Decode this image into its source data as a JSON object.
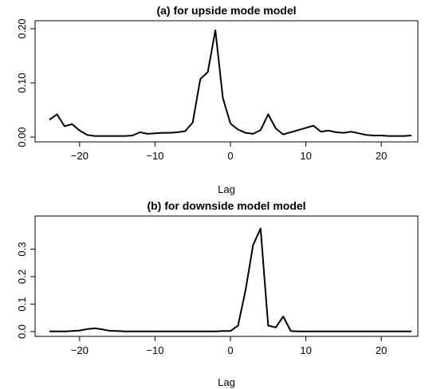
{
  "chart_data": [
    {
      "type": "line",
      "title": "(a) for upside mode model",
      "xlabel": "Lag",
      "ylabel": "",
      "xlim": [
        -24,
        24
      ],
      "ylim": [
        0,
        0.2
      ],
      "xticks": [
        -20,
        -10,
        0,
        10,
        20
      ],
      "xtick_labels": [
        "−20",
        "−10",
        "0",
        "10",
        "20"
      ],
      "yticks": [
        0,
        0.1,
        0.2
      ],
      "ytick_labels": [
        "0.00",
        "0.10",
        "0.20"
      ],
      "grid": false,
      "series": [
        {
          "x": [
            -24,
            -23,
            -22,
            -21,
            -20,
            -19,
            -18,
            -17,
            -16,
            -15,
            -14,
            -13,
            -12,
            -11,
            -10,
            -9,
            -8,
            -7,
            -6,
            -5,
            -4,
            -3,
            -2,
            -1,
            0,
            1,
            2,
            3,
            4,
            5,
            6,
            7,
            8,
            9,
            10,
            11,
            12,
            13,
            14,
            15,
            16,
            17,
            18,
            19,
            20,
            21,
            22,
            23,
            24
          ],
          "y": [
            0.032,
            0.042,
            0.02,
            0.024,
            0.012,
            0.004,
            0.002,
            0.002,
            0.002,
            0.002,
            0.002,
            0.003,
            0.009,
            0.006,
            0.007,
            0.008,
            0.008,
            0.009,
            0.011,
            0.027,
            0.107,
            0.12,
            0.197,
            0.072,
            0.025,
            0.014,
            0.008,
            0.006,
            0.013,
            0.042,
            0.016,
            0.005,
            0.009,
            0.013,
            0.017,
            0.021,
            0.01,
            0.012,
            0.009,
            0.008,
            0.01,
            0.007,
            0.004,
            0.003,
            0.003,
            0.002,
            0.002,
            0.002,
            0.003
          ]
        }
      ]
    },
    {
      "type": "line",
      "title": "(b) for downside model model",
      "xlabel": "Lag",
      "ylabel": "",
      "xlim": [
        -24,
        24
      ],
      "ylim": [
        0,
        0.38
      ],
      "xticks": [
        -20,
        -10,
        0,
        10,
        20
      ],
      "xtick_labels": [
        "−20",
        "−10",
        "0",
        "10",
        "20"
      ],
      "yticks": [
        0,
        0.1,
        0.2,
        0.3
      ],
      "ytick_labels": [
        "0.0",
        "0.1",
        "0.2",
        "0.3"
      ],
      "grid": false,
      "series": [
        {
          "x": [
            -24,
            -23,
            -22,
            -21,
            -20,
            -19,
            -18,
            -17,
            -16,
            -15,
            -14,
            -13,
            -12,
            -11,
            -10,
            -9,
            -8,
            -7,
            -6,
            -5,
            -4,
            -3,
            -2,
            -1,
            0,
            1,
            2,
            3,
            4,
            5,
            6,
            7,
            8,
            9,
            10,
            11,
            12,
            13,
            14,
            15,
            16,
            17,
            18,
            19,
            20,
            21,
            22,
            23,
            24
          ],
          "y": [
            0.001,
            0.001,
            0.001,
            0.002,
            0.004,
            0.009,
            0.012,
            0.008,
            0.003,
            0.002,
            0.001,
            0.001,
            0.001,
            0.001,
            0.001,
            0.001,
            0.001,
            0.001,
            0.001,
            0.001,
            0.001,
            0.001,
            0.001,
            0.002,
            0.002,
            0.022,
            0.15,
            0.315,
            0.375,
            0.022,
            0.015,
            0.055,
            0.002,
            0.001,
            0.001,
            0.001,
            0.001,
            0.001,
            0.001,
            0.001,
            0.001,
            0.001,
            0.001,
            0.001,
            0.001,
            0.001,
            0.001,
            0.001,
            0.001
          ]
        }
      ]
    }
  ]
}
